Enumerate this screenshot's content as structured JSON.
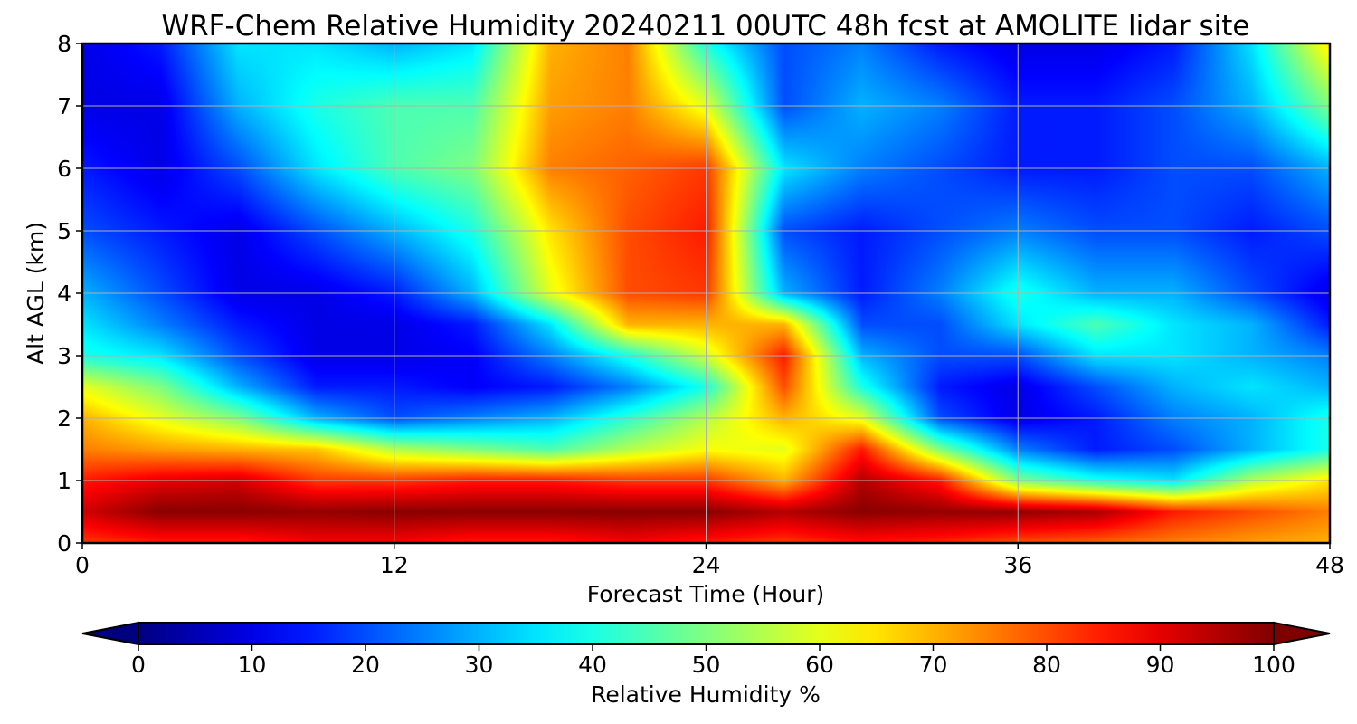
{
  "chart_data": {
    "type": "heatmap",
    "title": "WRF-Chem Relative Humidity 20240211 00UTC 48h fcst at AMOLITE lidar site",
    "xlabel": "Forecast Time (Hour)",
    "ylabel": "Alt AGL (km)",
    "xlim": [
      0,
      48
    ],
    "ylim": [
      0,
      8
    ],
    "x_ticks": [
      "0",
      "12",
      "24",
      "36",
      "48"
    ],
    "y_ticks": [
      "0",
      "1",
      "2",
      "3",
      "4",
      "5",
      "6",
      "7",
      "8"
    ],
    "grid": true,
    "colormap": "jet",
    "colorbar": {
      "label": "Relative Humidity %",
      "range": [
        0,
        100
      ],
      "ticks": [
        "0",
        "10",
        "20",
        "30",
        "40",
        "50",
        "60",
        "70",
        "80",
        "90",
        "100"
      ],
      "extend": "both",
      "orientation": "horizontal",
      "placement": "bottom"
    },
    "x": [
      0,
      3,
      6,
      9,
      12,
      15,
      18,
      21,
      24,
      27,
      30,
      33,
      36,
      39,
      42,
      45,
      48
    ],
    "y": [
      0,
      0.5,
      1,
      1.5,
      2,
      2.5,
      3,
      3.5,
      4,
      5,
      6,
      7,
      8
    ],
    "z": [
      [
        82,
        85,
        85,
        88,
        88,
        85,
        85,
        88,
        85,
        82,
        86,
        84,
        80,
        78,
        75,
        72,
        70
      ],
      [
        92,
        99,
        99,
        98,
        99,
        99,
        99,
        99,
        99,
        95,
        99,
        98,
        98,
        96,
        85,
        80,
        75
      ],
      [
        85,
        90,
        92,
        82,
        82,
        85,
        85,
        82,
        82,
        70,
        95,
        85,
        50,
        40,
        35,
        55,
        65
      ],
      [
        75,
        72,
        70,
        68,
        55,
        50,
        45,
        55,
        62,
        60,
        85,
        50,
        25,
        15,
        20,
        30,
        40
      ],
      [
        70,
        60,
        50,
        30,
        20,
        25,
        30,
        42,
        55,
        70,
        60,
        20,
        10,
        15,
        25,
        30,
        40
      ],
      [
        60,
        50,
        30,
        15,
        15,
        12,
        15,
        25,
        40,
        80,
        40,
        15,
        10,
        20,
        30,
        35,
        30
      ],
      [
        40,
        35,
        20,
        10,
        10,
        12,
        25,
        40,
        58,
        85,
        30,
        20,
        20,
        35,
        35,
        30,
        25
      ],
      [
        35,
        25,
        15,
        10,
        10,
        15,
        35,
        70,
        70,
        70,
        20,
        20,
        35,
        45,
        35,
        30,
        15
      ],
      [
        30,
        20,
        10,
        10,
        15,
        30,
        60,
        80,
        82,
        30,
        15,
        25,
        40,
        30,
        30,
        20,
        10
      ],
      [
        20,
        15,
        10,
        20,
        30,
        40,
        65,
        80,
        85,
        20,
        15,
        20,
        25,
        20,
        20,
        15,
        20
      ],
      [
        15,
        10,
        20,
        35,
        45,
        50,
        75,
        78,
        82,
        35,
        25,
        20,
        15,
        15,
        20,
        20,
        30
      ],
      [
        10,
        10,
        30,
        40,
        45,
        45,
        72,
        75,
        60,
        20,
        30,
        25,
        15,
        15,
        20,
        30,
        50
      ],
      [
        10,
        15,
        35,
        35,
        30,
        35,
        70,
        75,
        40,
        20,
        25,
        15,
        10,
        10,
        15,
        35,
        65
      ]
    ]
  }
}
